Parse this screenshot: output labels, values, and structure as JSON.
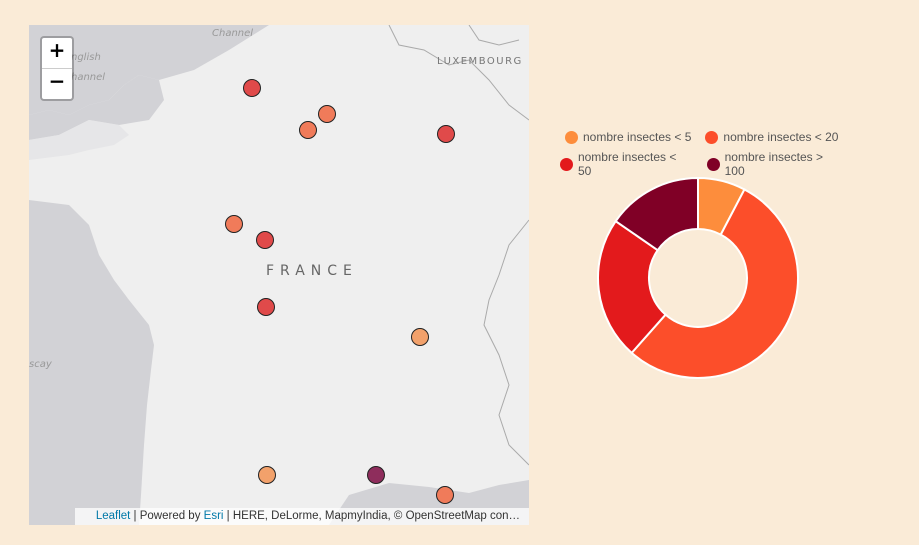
{
  "map": {
    "zoom_in_label": "+",
    "zoom_out_label": "−",
    "places": {
      "channel": "Channel",
      "english": "nglish",
      "channel_left": "hannel",
      "biscay": "scay",
      "luxembourg": "LUXEMBOURG",
      "france": "FRANCE"
    },
    "attribution": {
      "leaflet": "Leaflet",
      "powered": " | Powered by ",
      "esri": "Esri",
      "rest": " | HERE, DeLorme, MapmyIndia, © OpenStreetMap con…"
    },
    "marker_colors": {
      "lt5": "#f2a16b",
      "lt20": "#f07b5a",
      "lt50": "#e04a4a",
      "gt100": "#8e2d5c"
    },
    "markers": [
      {
        "category": "lt50"
      },
      {
        "category": "lt20"
      },
      {
        "category": "lt20"
      },
      {
        "category": "lt50"
      },
      {
        "category": "lt20"
      },
      {
        "category": "lt50"
      },
      {
        "category": "lt50"
      },
      {
        "category": "lt5"
      },
      {
        "category": "lt5"
      },
      {
        "category": "gt100"
      },
      {
        "category": "lt20"
      }
    ]
  },
  "chart_data": {
    "type": "pie",
    "donut": true,
    "legend_position": "top",
    "categories": [
      "nombre insectes < 5",
      "nombre insectes < 20",
      "nombre insectes < 50",
      "nombre insectes > 100"
    ],
    "values": [
      1,
      7,
      3,
      2
    ],
    "colors": [
      "#fd8d3c",
      "#fc4e2a",
      "#e31a1c",
      "#800026"
    ]
  }
}
